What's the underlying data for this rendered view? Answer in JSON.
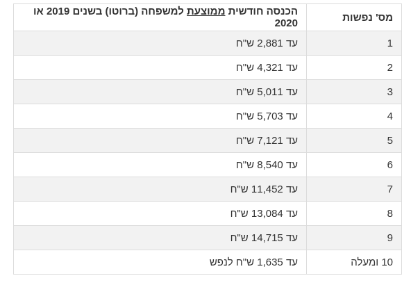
{
  "table": {
    "headers": {
      "people": "מס' נפשות",
      "income_prefix": "הכנסה חודשית ",
      "income_underlined": "ממוצעת",
      "income_suffix": " למשפחה (ברוטו) בשנים 2019 או 2020"
    },
    "rows": [
      {
        "people": "1",
        "income": "עד 2,881 ש\"ח"
      },
      {
        "people": "2",
        "income": "עד 4,321 ש\"ח"
      },
      {
        "people": "3",
        "income": "עד 5,011 ש\"ח"
      },
      {
        "people": "4",
        "income": "עד 5,703 ש\"ח"
      },
      {
        "people": "5",
        "income": "עד 7,121 ש\"ח"
      },
      {
        "people": "6",
        "income": "עד 8,540 ש\"ח"
      },
      {
        "people": "7",
        "income": "עד 11,452 ש\"ח"
      },
      {
        "people": "8",
        "income": "עד 13,084 ש\"ח"
      },
      {
        "people": "9",
        "income": "עד 14,715 ש\"ח"
      },
      {
        "people": "10 ומעלה",
        "income": "עד 1,635 ש\"ח לנפש"
      }
    ]
  }
}
